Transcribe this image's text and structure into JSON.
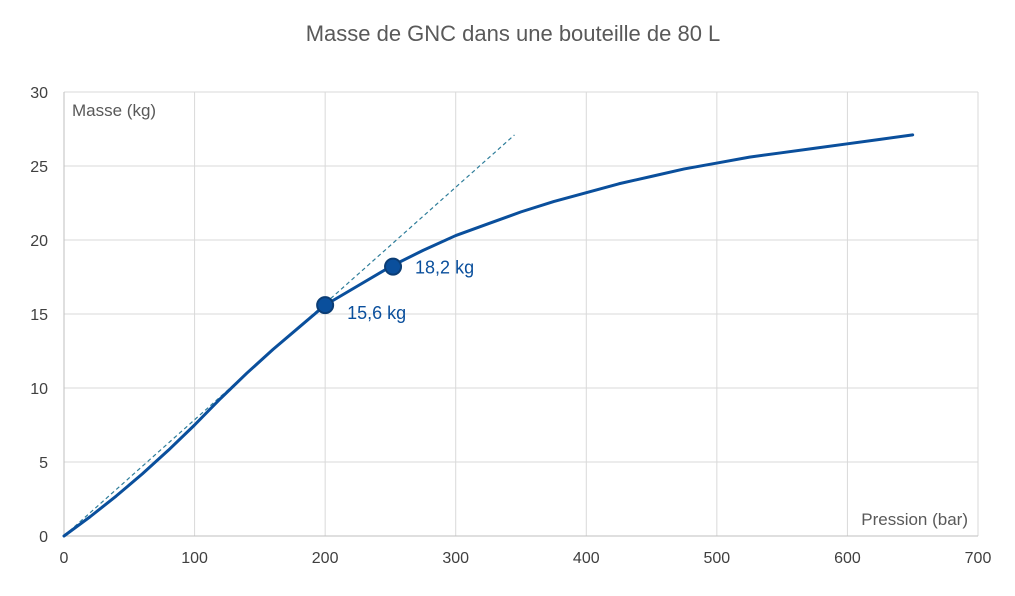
{
  "chart_data": {
    "type": "line",
    "title": "Masse de GNC dans une bouteille de 80 L",
    "xlabel": "Pression (bar)",
    "ylabel": "Masse (kg)",
    "xlim": [
      0,
      700
    ],
    "ylim": [
      0,
      30
    ],
    "x_ticks": [
      0,
      100,
      200,
      300,
      400,
      500,
      600,
      700
    ],
    "y_ticks": [
      0,
      5,
      10,
      15,
      20,
      25,
      30
    ],
    "grid": true,
    "legend": "none",
    "colors": {
      "series": "#0a4f9c",
      "marker": "#0a4f9c",
      "marker_edge": "#0b3d75",
      "tangent": "#2e7d9a",
      "label": "#0a4f9c"
    },
    "series": [
      {
        "values_x": [
          0,
          20,
          40,
          60,
          80,
          100,
          120,
          140,
          160,
          180,
          200,
          225,
          250,
          275,
          300,
          325,
          350,
          375,
          400,
          425,
          450,
          475,
          500,
          525,
          550,
          575,
          600,
          625,
          650
        ],
        "values_y": [
          0,
          1.3,
          2.7,
          4.2,
          5.8,
          7.5,
          9.3,
          11.0,
          12.6,
          14.1,
          15.6,
          16.9,
          18.2,
          19.3,
          20.3,
          21.1,
          21.9,
          22.6,
          23.2,
          23.8,
          24.3,
          24.8,
          25.2,
          25.6,
          25.9,
          26.2,
          26.5,
          26.8,
          27.1
        ]
      }
    ],
    "tangent": {
      "x": [
        0,
        345
      ],
      "y": [
        0,
        27.1
      ]
    },
    "points": [
      {
        "x": 200,
        "y": 15.6,
        "label": "15,6 kg"
      },
      {
        "x": 252,
        "y": 18.2,
        "label": "18,2 kg"
      }
    ]
  }
}
